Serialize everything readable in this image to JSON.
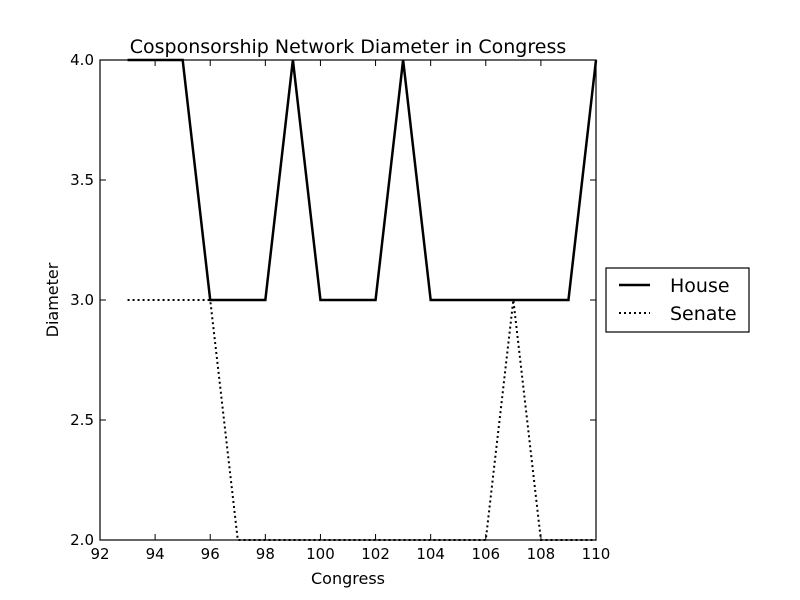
{
  "chart_data": {
    "type": "line",
    "title": "Cosponsorship Network Diameter in Congress",
    "xlabel": "Congress",
    "ylabel": "Diameter",
    "xlim": [
      92,
      110
    ],
    "ylim": [
      2.0,
      4.0
    ],
    "xticks": [
      92,
      94,
      96,
      98,
      100,
      102,
      104,
      106,
      108,
      110
    ],
    "yticks": [
      2.0,
      2.5,
      3.0,
      3.5,
      4.0
    ],
    "xtick_labels": [
      "92",
      "94",
      "96",
      "98",
      "100",
      "102",
      "104",
      "106",
      "108",
      "110"
    ],
    "ytick_labels": [
      "2.0",
      "2.5",
      "3.0",
      "3.5",
      "4.0"
    ],
    "grid": false,
    "legend_position": "outside-right",
    "series": [
      {
        "name": "House",
        "style": "solid",
        "color": "#000000",
        "x": [
          93,
          94,
          95,
          96,
          97,
          98,
          99,
          100,
          101,
          102,
          103,
          104,
          105,
          106,
          107,
          108,
          109,
          110
        ],
        "y": [
          4,
          4,
          4,
          3,
          3,
          3,
          4,
          3,
          3,
          3,
          4,
          3,
          3,
          3,
          3,
          3,
          3,
          4
        ]
      },
      {
        "name": "Senate",
        "style": "dotted",
        "color": "#000000",
        "x": [
          93,
          94,
          95,
          96,
          97,
          98,
          99,
          100,
          101,
          102,
          103,
          104,
          105,
          106,
          107,
          108,
          109,
          110
        ],
        "y": [
          3,
          3,
          3,
          3,
          2,
          2,
          2,
          2,
          2,
          2,
          2,
          2,
          2,
          2,
          3,
          2,
          2,
          2
        ]
      }
    ]
  }
}
